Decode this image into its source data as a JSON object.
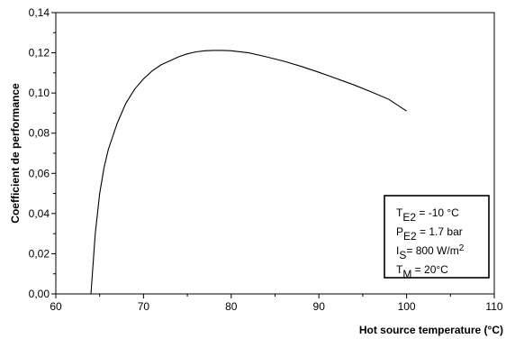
{
  "chart_data": {
    "type": "line",
    "xlabel": "Hot source temperature (°C)",
    "ylabel": "Coefficient de performance",
    "xlim": [
      60,
      110
    ],
    "ylim": [
      0,
      0.14
    ],
    "xticks": [
      60,
      70,
      80,
      90,
      100,
      110
    ],
    "yticks": [
      0.0,
      0.02,
      0.04,
      0.06,
      0.08,
      0.1,
      0.12,
      0.14
    ],
    "xtick_labels": [
      "60",
      "70",
      "80",
      "90",
      "100",
      "110"
    ],
    "ytick_labels": [
      "0,00",
      "0,02",
      "0,04",
      "0,06",
      "0,08",
      "0,10",
      "0,12",
      "0,14"
    ],
    "grid": false,
    "series": [
      {
        "x": [
          64,
          64.5,
          65,
          65.5,
          66,
          67,
          68,
          69,
          70,
          71,
          72,
          73,
          74,
          75,
          76,
          77,
          78,
          79,
          80,
          82,
          84,
          86,
          88,
          90,
          92,
          94,
          96,
          98,
          100
        ],
        "y": [
          0.0,
          0.03,
          0.05,
          0.063,
          0.072,
          0.085,
          0.095,
          0.102,
          0.107,
          0.111,
          0.114,
          0.116,
          0.118,
          0.1195,
          0.1205,
          0.121,
          0.1212,
          0.1212,
          0.121,
          0.12,
          0.118,
          0.1158,
          0.1132,
          0.1103,
          0.1072,
          0.104,
          0.1005,
          0.0968,
          0.091
        ]
      }
    ],
    "legend": {
      "placement": "bottom-right",
      "entries": [
        {
          "main": "T",
          "sub": "E2",
          "rest": " = -10 °C"
        },
        {
          "main": "P",
          "sub": "E2",
          "rest": " = 1.7 bar"
        },
        {
          "main": "I",
          "sub": "S",
          "rest": "= 800 W/m",
          "sup": "2"
        },
        {
          "main": "T",
          "sub": "M",
          "rest": " = 20°C"
        }
      ]
    }
  }
}
